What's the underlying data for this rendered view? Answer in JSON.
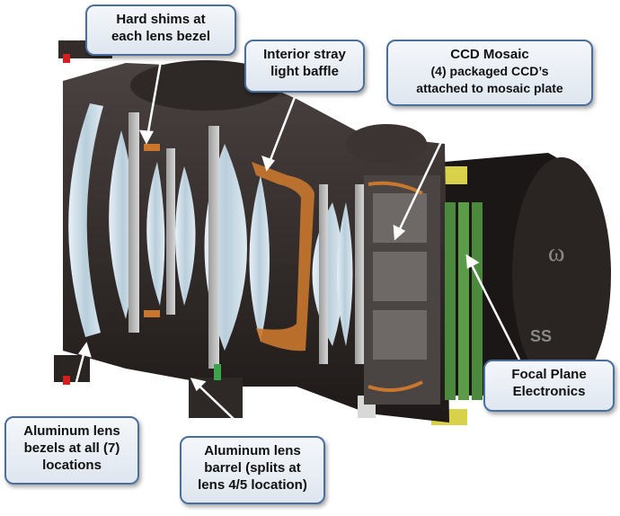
{
  "callouts": {
    "hard_shims": {
      "lines": [
        "Hard shims at",
        "each lens bezel"
      ]
    },
    "stray_light": {
      "lines": [
        "Interior stray",
        "light baffle"
      ]
    },
    "ccd_mosaic": {
      "lines": [
        "CCD Mosaic",
        "(4) packaged CCD’s",
        "attached to mosaic plate"
      ]
    },
    "focal_plane": {
      "lines": [
        "Focal Plane",
        "Electronics"
      ]
    },
    "aluminum_bezels": {
      "lines": [
        "Aluminum lens",
        "bezels at all (7)",
        "locations"
      ]
    },
    "aluminum_barrel": {
      "lines": [
        "Aluminum lens",
        "barrel (splits at",
        "lens 4/5 location)"
      ]
    }
  },
  "colors": {
    "callout_border": "#4a6f9c",
    "housing": "#3a3230",
    "lens_glass": "#cfdfe8",
    "baffle": "#c9772e",
    "circuit_board": "#4b8a3c"
  },
  "logo_text": "SS"
}
